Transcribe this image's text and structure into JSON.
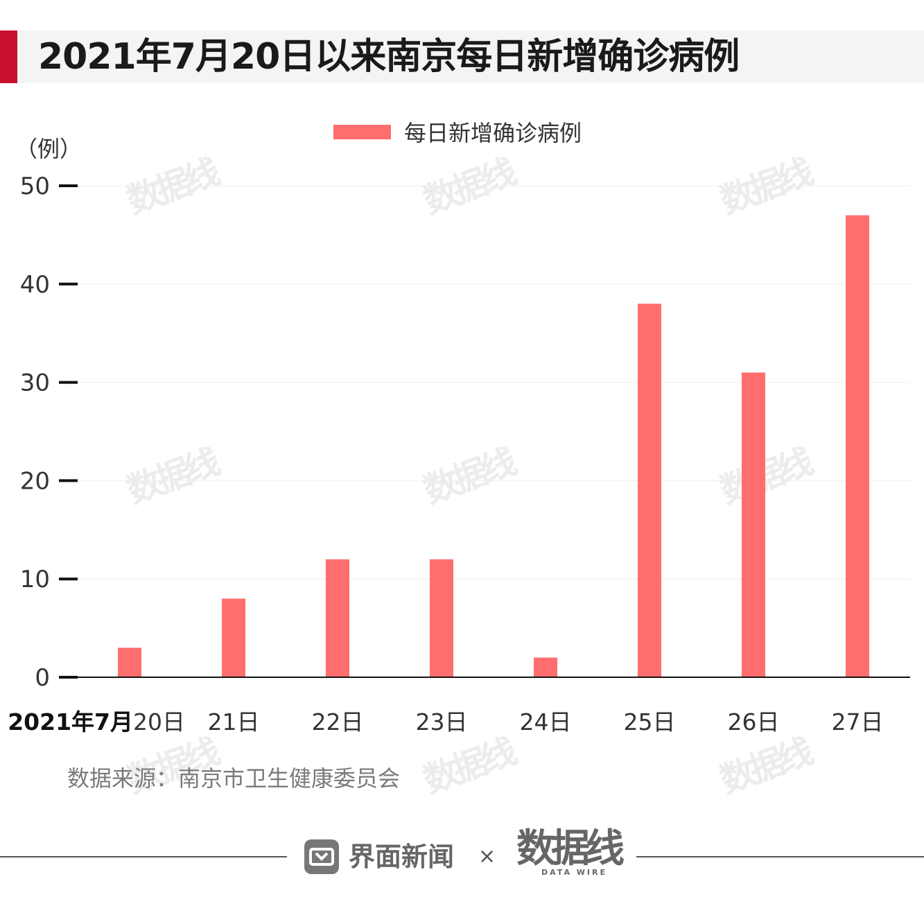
{
  "title": "2021年7月20日以来南京每日新增确诊病例",
  "unit_label": "（例）",
  "source": "数据来源：南京市卫生健康委员会",
  "footer": {
    "brand_name": "界面新闻",
    "times": "×",
    "logo_text": "数据线",
    "logo_sub": "DATA WIRE"
  },
  "watermark_text": "数据线",
  "colors": {
    "accent": "#c8102e",
    "bar": "#ff6e6e"
  },
  "chart_data": {
    "type": "bar",
    "categories": [
      "2021年7月20日",
      "21日",
      "22日",
      "23日",
      "24日",
      "25日",
      "26日",
      "27日"
    ],
    "first_category_parts": {
      "bold": "2021年7月",
      "normal": "20日"
    },
    "series": [
      {
        "name": "每日新增确诊病例",
        "values": [
          3,
          8,
          12,
          12,
          2,
          38,
          31,
          47
        ]
      }
    ],
    "yticks": [
      0,
      10,
      20,
      30,
      40,
      50
    ],
    "ylim": [
      0,
      50
    ],
    "grid": true,
    "legend": "top-center"
  }
}
